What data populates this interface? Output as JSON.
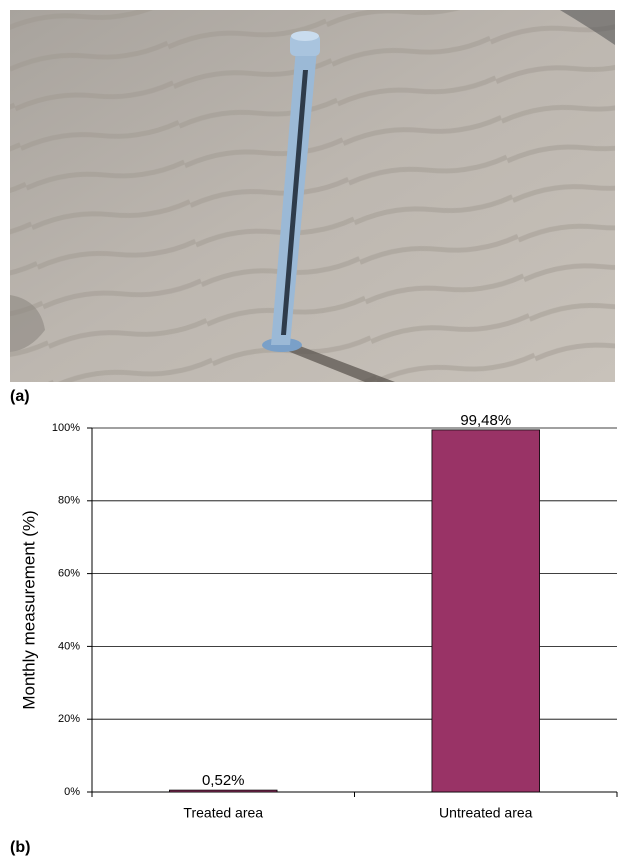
{
  "panel_labels": [
    "(a)",
    "(b)"
  ],
  "chart_data": {
    "type": "bar",
    "y_label": "Monthly measurement (%)",
    "categories": [
      "Treated area",
      "Untreated area"
    ],
    "values": [
      0.52,
      99.48
    ],
    "value_labels": [
      "0,52%",
      "99,48%"
    ],
    "color": "#993366",
    "ylim": [
      0,
      100
    ],
    "yticks": [
      {
        "value": 0,
        "label": "0%"
      },
      {
        "value": 20,
        "label": "20%"
      },
      {
        "value": 40,
        "label": "40%"
      },
      {
        "value": 60,
        "label": "60%"
      },
      {
        "value": 80,
        "label": "80%"
      },
      {
        "value": 100,
        "label": "100%"
      }
    ],
    "grid": true
  }
}
